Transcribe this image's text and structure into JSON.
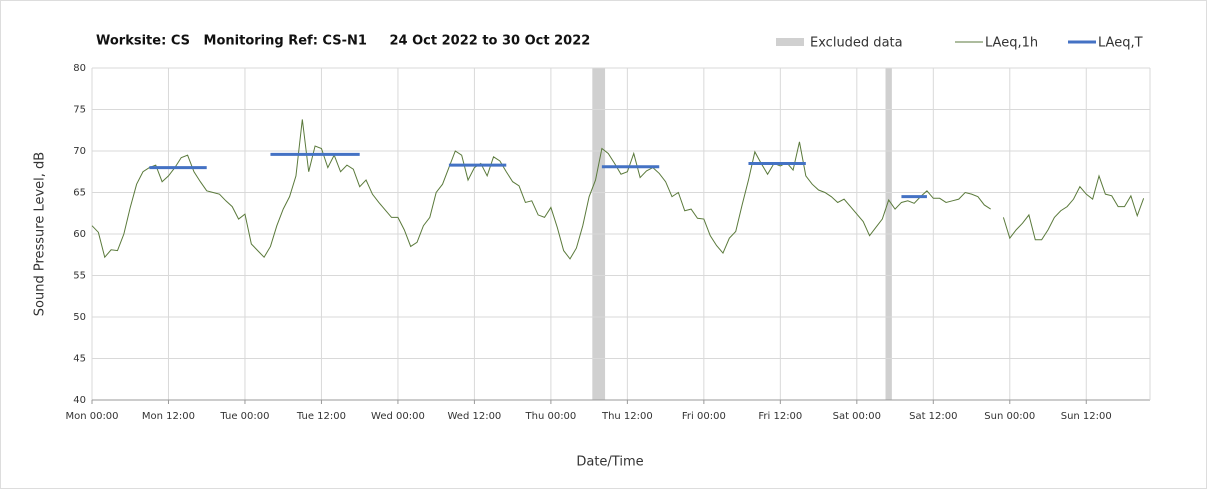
{
  "chart_data": {
    "type": "line",
    "title": "Worksite: CS   Monitoring Ref: CS-N1     24 Oct 2022 to 30 Oct 2022",
    "x_label": "Date/Time",
    "y_label": "Sound Pressure Level, dB",
    "xlim": [
      0,
      166
    ],
    "ylim": [
      40,
      80
    ],
    "yticks": [
      40,
      45,
      50,
      55,
      60,
      65,
      70,
      75,
      80
    ],
    "xticks": [
      {
        "value": 0,
        "label": "Mon 00:00"
      },
      {
        "value": 12,
        "label": "Mon 12:00"
      },
      {
        "value": 24,
        "label": "Tue 00:00"
      },
      {
        "value": 36,
        "label": "Tue 12:00"
      },
      {
        "value": 48,
        "label": "Wed 00:00"
      },
      {
        "value": 60,
        "label": "Wed 12:00"
      },
      {
        "value": 72,
        "label": "Thu 00:00"
      },
      {
        "value": 84,
        "label": "Thu 12:00"
      },
      {
        "value": 96,
        "label": "Fri 00:00"
      },
      {
        "value": 108,
        "label": "Fri 12:00"
      },
      {
        "value": 120,
        "label": "Sat 00:00"
      },
      {
        "value": 132,
        "label": "Sat 12:00"
      },
      {
        "value": 144,
        "label": "Sun 00:00"
      },
      {
        "value": 156,
        "label": "Sun 12:00"
      }
    ],
    "grid": true,
    "excluded": {
      "name": "Excluded data",
      "color": "#d0d0d0",
      "ranges": [
        [
          78.5,
          80.5
        ],
        [
          124.5,
          125.5
        ]
      ]
    },
    "series": [
      {
        "name": "LAeq,1h",
        "color": "#5b7a3c",
        "width": 1,
        "x": [
          0,
          1,
          2,
          3,
          4,
          5,
          6,
          7,
          8,
          9,
          10,
          11,
          12,
          13,
          14,
          15,
          16,
          17,
          18,
          19,
          20,
          21,
          22,
          23,
          24,
          25,
          26,
          27,
          28,
          29,
          30,
          31,
          32,
          33,
          34,
          35,
          36,
          37,
          38,
          39,
          40,
          41,
          42,
          43,
          44,
          45,
          46,
          47,
          48,
          49,
          50,
          51,
          52,
          53,
          54,
          55,
          56,
          57,
          58,
          59,
          60,
          61,
          62,
          63,
          64,
          65,
          66,
          67,
          68,
          69,
          70,
          71,
          72,
          73,
          74,
          75,
          76,
          77,
          78,
          79,
          80,
          81,
          82,
          83,
          84,
          85,
          86,
          87,
          88,
          89,
          90,
          91,
          92,
          93,
          94,
          95,
          96,
          97,
          98,
          99,
          100,
          101,
          102,
          103,
          104,
          105,
          106,
          107,
          108,
          109,
          110,
          111,
          112,
          113,
          114,
          115,
          116,
          117,
          118,
          119,
          120,
          121,
          122,
          123,
          124,
          125,
          126,
          127,
          128,
          129,
          130,
          131,
          132,
          133,
          134,
          135,
          136,
          137,
          138,
          139,
          140,
          141,
          142,
          143,
          144,
          145,
          146,
          147,
          148,
          149,
          150,
          151,
          152,
          153,
          154,
          155,
          156,
          157,
          158,
          159,
          160,
          161,
          162,
          163,
          164,
          165
        ],
        "values": [
          61,
          60.2,
          57.2,
          58.1,
          58,
          60,
          63.2,
          66,
          67.5,
          68,
          68.3,
          66.3,
          67,
          68,
          69.2,
          69.5,
          67.5,
          66.3,
          65.2,
          65,
          64.8,
          64,
          63.3,
          61.8,
          62.4,
          58.8,
          58,
          57.2,
          58.5,
          61,
          63,
          64.5,
          67,
          73.8,
          67.5,
          70.6,
          70.3,
          68,
          69.5,
          67.5,
          68.3,
          67.8,
          65.7,
          66.5,
          64.8,
          63.8,
          62.9,
          62,
          62,
          60.5,
          58.5,
          59,
          61,
          62,
          65,
          66,
          68,
          70,
          69.5,
          66.5,
          68,
          68.5,
          67,
          69.3,
          68.8,
          67.5,
          66.3,
          65.8,
          63.8,
          64,
          62.3,
          62,
          63.2,
          60.8,
          58,
          57,
          58.3,
          61,
          64.5,
          66.5,
          70.3,
          69.7,
          68.5,
          67.2,
          67.5,
          69.7,
          66.8,
          67.6,
          68,
          67.3,
          66.3,
          64.5,
          65,
          62.8,
          63,
          61.9,
          61.8,
          59.8,
          58.6,
          57.7,
          59.5,
          60.3,
          63.5,
          66.5,
          69.9,
          68.5,
          67.2,
          68.5,
          68.2,
          68.6,
          67.7,
          71.1,
          67,
          66,
          65.3,
          65,
          64.5,
          63.8,
          64.2,
          63.3,
          62.4,
          61.5,
          59.8,
          60.8,
          61.8,
          64.1,
          63,
          63.8,
          64,
          63.7,
          64.5,
          65.2,
          64.3,
          64.3,
          63.8,
          64,
          64.2,
          65,
          64.8,
          64.5,
          63.5,
          63,
          null,
          62,
          59.5,
          60.5,
          61.3,
          62.3,
          59.3,
          59.3,
          60.5,
          62,
          62.8,
          63.3,
          64.2,
          65.7,
          64.8,
          64.2,
          67,
          64.8,
          64.6,
          63.3,
          63.3,
          64.6,
          62.2,
          64.3
        ]
      },
      {
        "name": "LAeq,T",
        "color": "#4472c4",
        "width": 3,
        "x": [
          9,
          18,
          null,
          28,
          42,
          null,
          56,
          65,
          null,
          80,
          89,
          null,
          103,
          112,
          null,
          127,
          131
        ],
        "values": [
          68,
          68,
          null,
          69.6,
          69.6,
          null,
          68.3,
          68.3,
          null,
          68.1,
          68.1,
          null,
          68.5,
          68.5,
          null,
          64.5,
          64.5
        ]
      }
    ]
  }
}
